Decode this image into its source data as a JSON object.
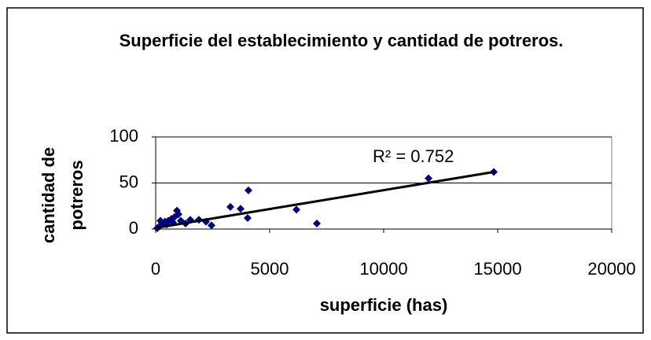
{
  "chart_data": {
    "type": "scatter",
    "title": "Superficie del establecimiento y cantidad de potreros.",
    "xlabel": "superficie (has)",
    "ylabel": "cantidad de potreros",
    "annotation": "R² = 0.752",
    "color": "#000080",
    "x": [
      14828,
      11966,
      7069,
      6172,
      4069,
      4034,
      3724,
      3276,
      1517,
      1897,
      2207,
      2448,
      1310,
      931,
      1000,
      828,
      690,
      552,
      414,
      276,
      172,
      69,
      207,
      483,
      759,
      1103
    ],
    "y": [
      62,
      55,
      6,
      21,
      42,
      12,
      22,
      24,
      10,
      10,
      8,
      4,
      6,
      20,
      16,
      13,
      11,
      9,
      8,
      6,
      3,
      1,
      9,
      5,
      7,
      9
    ],
    "trendline": {
      "slope": 0.0041,
      "intercept": 1.2
    },
    "xlim": [
      0,
      20000
    ],
    "xticks": [
      0,
      5000,
      10000,
      15000,
      20000
    ],
    "ylim": [
      0,
      100
    ],
    "yticks": [
      0,
      50,
      100
    ],
    "grid": true
  }
}
